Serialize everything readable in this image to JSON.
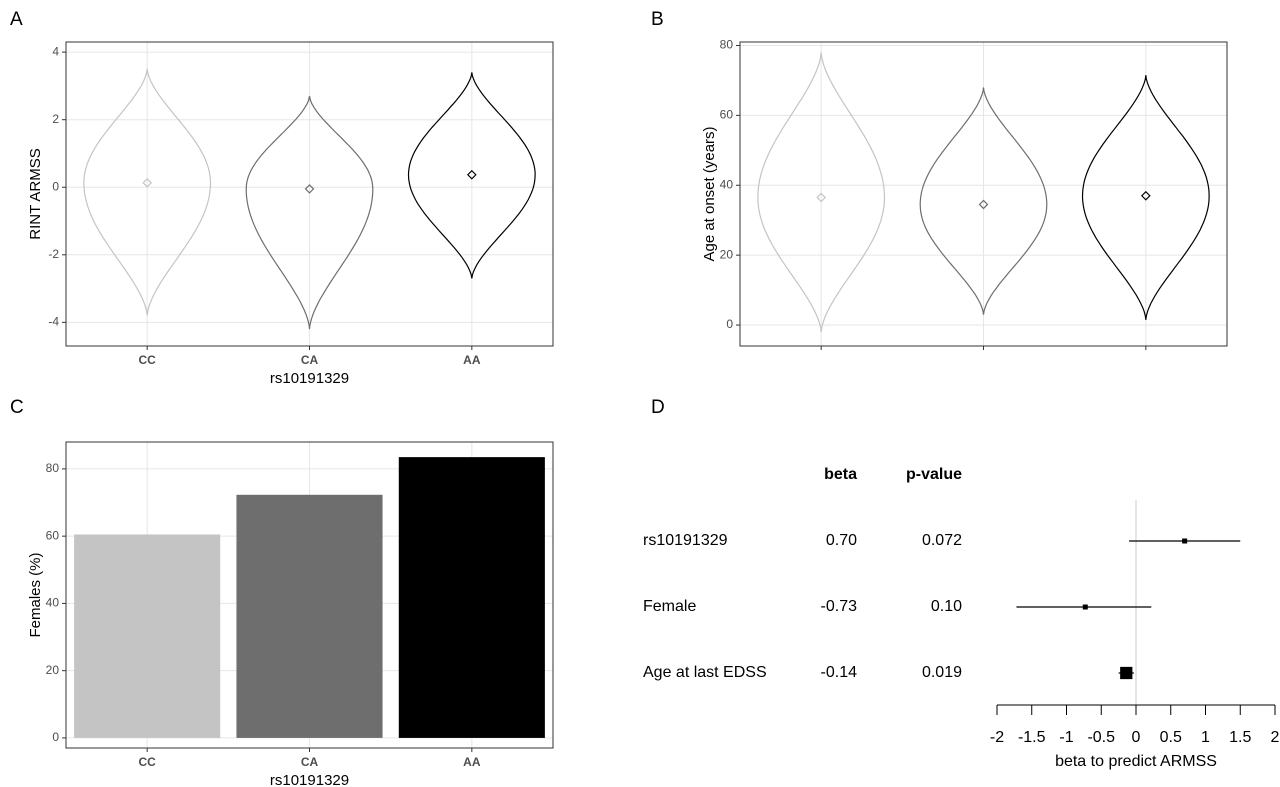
{
  "chart_data": [
    {
      "type": "violin",
      "panel": "A",
      "categories": [
        "CC",
        "CA",
        "AA"
      ],
      "colors": [
        "#c4c4c4",
        "#6e6e6e",
        "#000000"
      ],
      "means": [
        0.13,
        -0.05,
        0.37
      ],
      "mins": [
        -3.8,
        -4.2,
        -2.7
      ],
      "maxs": [
        3.5,
        2.7,
        3.4
      ],
      "ylim": [
        -4.7,
        4.3
      ],
      "yticks": [
        -4,
        -2,
        0,
        2,
        4
      ],
      "ylabel": "RINT ARMSS",
      "xlabel": "rs10191329",
      "grid": true
    },
    {
      "type": "violin",
      "panel": "B",
      "categories": [
        null,
        null,
        null
      ],
      "colors": [
        "#c4c4c4",
        "#6e6e6e",
        "#000000"
      ],
      "means": [
        36.5,
        34.5,
        37
      ],
      "mins": [
        -2,
        3,
        1.5
      ],
      "maxs": [
        78,
        68,
        71.5
      ],
      "ylim": [
        -6,
        81
      ],
      "yticks": [
        0,
        20,
        40,
        60,
        80
      ],
      "ylabel": "Age at onset (years)",
      "grid": true
    },
    {
      "type": "bar",
      "panel": "C",
      "categories": [
        "CC",
        "CA",
        "AA"
      ],
      "colors": [
        "#c4c4c4",
        "#6e6e6e",
        "#000000"
      ],
      "values": [
        60.5,
        72.3,
        83.5
      ],
      "ylim": [
        -3,
        88
      ],
      "yticks": [
        0,
        20,
        40,
        60,
        80
      ],
      "ylabel": "Females (%)",
      "xlabel": "rs10191329",
      "grid": true
    },
    {
      "type": "forest",
      "panel": "D",
      "categories": [
        "rs10191329",
        "Female",
        "Age at last EDSS"
      ],
      "beta_header": "beta",
      "p_header": "p-value",
      "values": [
        0.7,
        -0.73,
        -0.14
      ],
      "value_labels": [
        "0.70",
        "-0.73",
        "-0.14"
      ],
      "ci_low": [
        -0.1,
        -1.72,
        -0.25
      ],
      "ci_high": [
        1.5,
        0.22,
        -0.03
      ],
      "weights": [
        1,
        1,
        6
      ],
      "p_values": [
        0.072,
        0.1,
        0.019
      ],
      "p_value_labels": [
        "0.072",
        "0.10",
        "0.019"
      ],
      "xlim": [
        -2,
        2
      ],
      "xticks": [
        -2,
        -1.5,
        -1,
        -0.5,
        0,
        0.5,
        1,
        1.5,
        2
      ],
      "xlabel": "beta to predict ARMSS",
      "color": "#000000"
    }
  ]
}
